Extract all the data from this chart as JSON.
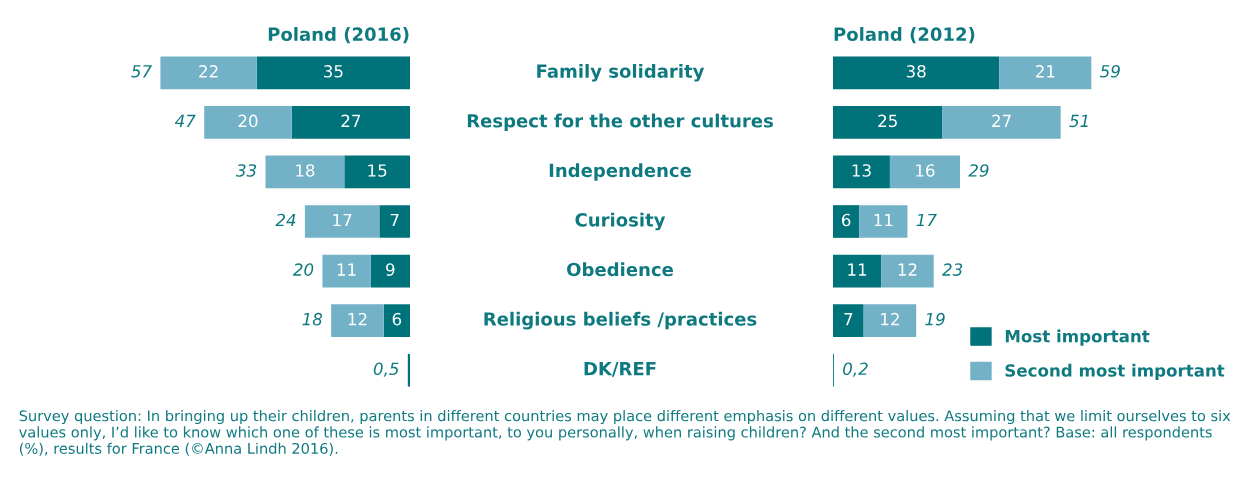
{
  "chart_data": [
    {
      "type": "bar",
      "orientation": "horizontal",
      "stacked": true,
      "title": "Poland (2016)",
      "categories": [
        "Family solidarity",
        "Respect for the other cultures",
        "Independence",
        "Curiosity",
        "Obedience",
        "Religious beliefs /practices",
        "DK/REF"
      ],
      "series": [
        {
          "name": "Most important",
          "color": "#00737a",
          "values": [
            35,
            27,
            15,
            7,
            9,
            6,
            0.5
          ],
          "value_labels": [
            "35",
            "27",
            "15",
            "7",
            "9",
            "6",
            null
          ]
        },
        {
          "name": "Second most important",
          "color": "#72b1c6",
          "values": [
            22,
            20,
            18,
            17,
            11,
            12,
            null
          ],
          "value_labels": [
            "22",
            "20",
            "18",
            "17",
            "11",
            "12",
            null
          ]
        }
      ],
      "totals": [
        "57",
        "47",
        "33",
        "24",
        "20",
        "18",
        "0,5"
      ],
      "tick_labels": "y",
      "legend": "bottom right",
      "annotations": [
        "Survey question: In bringing up their children, parents in different countries may place different emphasis on different values. Assuming that we limit ourselves to six values only, I’d like to know which one of these is most important, to you personally, when raising children? And the second most important? Base: all respondents (%), results for France (©Anna Lindh 2016)."
      ]
    },
    {
      "type": "bar",
      "orientation": "horizontal",
      "stacked": true,
      "title": "Poland (2012)",
      "categories": [
        null,
        null,
        null,
        null,
        null,
        null,
        null
      ],
      "series": [
        {
          "color": "#00737a",
          "values": [
            38,
            25,
            13,
            6,
            11,
            7,
            0.2
          ],
          "value_labels": [
            "38",
            "25",
            "13",
            "6",
            "11",
            "7",
            null
          ]
        },
        {
          "color": "#72b1c6",
          "values": [
            21,
            27,
            16,
            11,
            12,
            12,
            null
          ],
          "value_labels": [
            "21",
            "27",
            "16",
            "11",
            "12",
            "12",
            null
          ]
        }
      ],
      "totals": [
        "59",
        "51",
        "29",
        "17",
        "23",
        "19",
        "0,2"
      ],
      "tick_labels": false
    }
  ]
}
